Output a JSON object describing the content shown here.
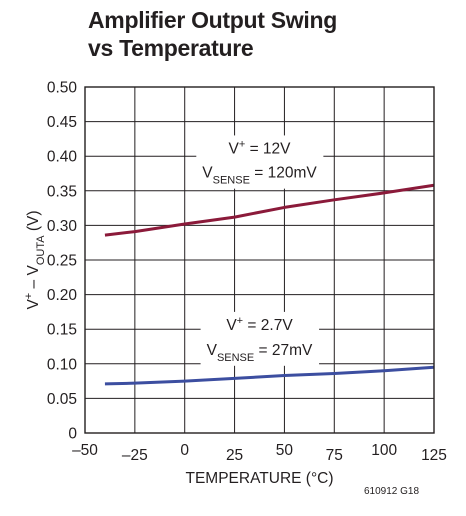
{
  "chart_data": {
    "type": "line",
    "title_lines": [
      "Amplifier Output Swing",
      "vs Temperature"
    ],
    "xlabel": "TEMPERATURE (°C)",
    "ylabel": {
      "main": "V",
      "sup": "+",
      "mid": " – V",
      "sub": "OUTA",
      "unit": " (V)"
    },
    "xlim": [
      -50,
      125
    ],
    "ylim": [
      0,
      0.5
    ],
    "xticks": [
      -50,
      -25,
      0,
      25,
      50,
      75,
      100,
      125
    ],
    "yticks": [
      0,
      0.05,
      0.1,
      0.15,
      0.2,
      0.25,
      0.3,
      0.35,
      0.4,
      0.45,
      0.5
    ],
    "ytick_labels": [
      "0",
      "0.05",
      "0.10",
      "0.15",
      "0.20",
      "0.25",
      "0.30",
      "0.35",
      "0.40",
      "0.45",
      "0.50"
    ],
    "grid": true,
    "series": [
      {
        "color": "#8b1a3a",
        "x": [
          -40,
          -25,
          0,
          25,
          50,
          75,
          100,
          125
        ],
        "y": [
          0.286,
          0.291,
          0.302,
          0.312,
          0.326,
          0.337,
          0.347,
          0.358
        ]
      },
      {
        "color": "#3c4ea0",
        "x": [
          -40,
          -25,
          0,
          25,
          50,
          75,
          100,
          125
        ],
        "y": [
          0.071,
          0.072,
          0.075,
          0.079,
          0.083,
          0.086,
          0.09,
          0.095
        ]
      }
    ],
    "annotations": [
      {
        "line1": {
          "main": "V",
          "sup": "+",
          "rest": " = 12V"
        },
        "line2": {
          "main": "V",
          "sub": "SENSE",
          "rest": " = 120mV"
        },
        "anchor": {
          "x": 37.5,
          "y1": 0.404,
          "y2": 0.369
        }
      },
      {
        "line1": {
          "main": "V",
          "sup": "+",
          "rest": " = 2.7V"
        },
        "line2": {
          "main": "V",
          "sub": "SENSE",
          "rest": " = 27mV"
        },
        "anchor": {
          "x": 37.5,
          "y1": 0.149,
          "y2": 0.113
        }
      }
    ]
  },
  "figure_id": "610912 G18"
}
